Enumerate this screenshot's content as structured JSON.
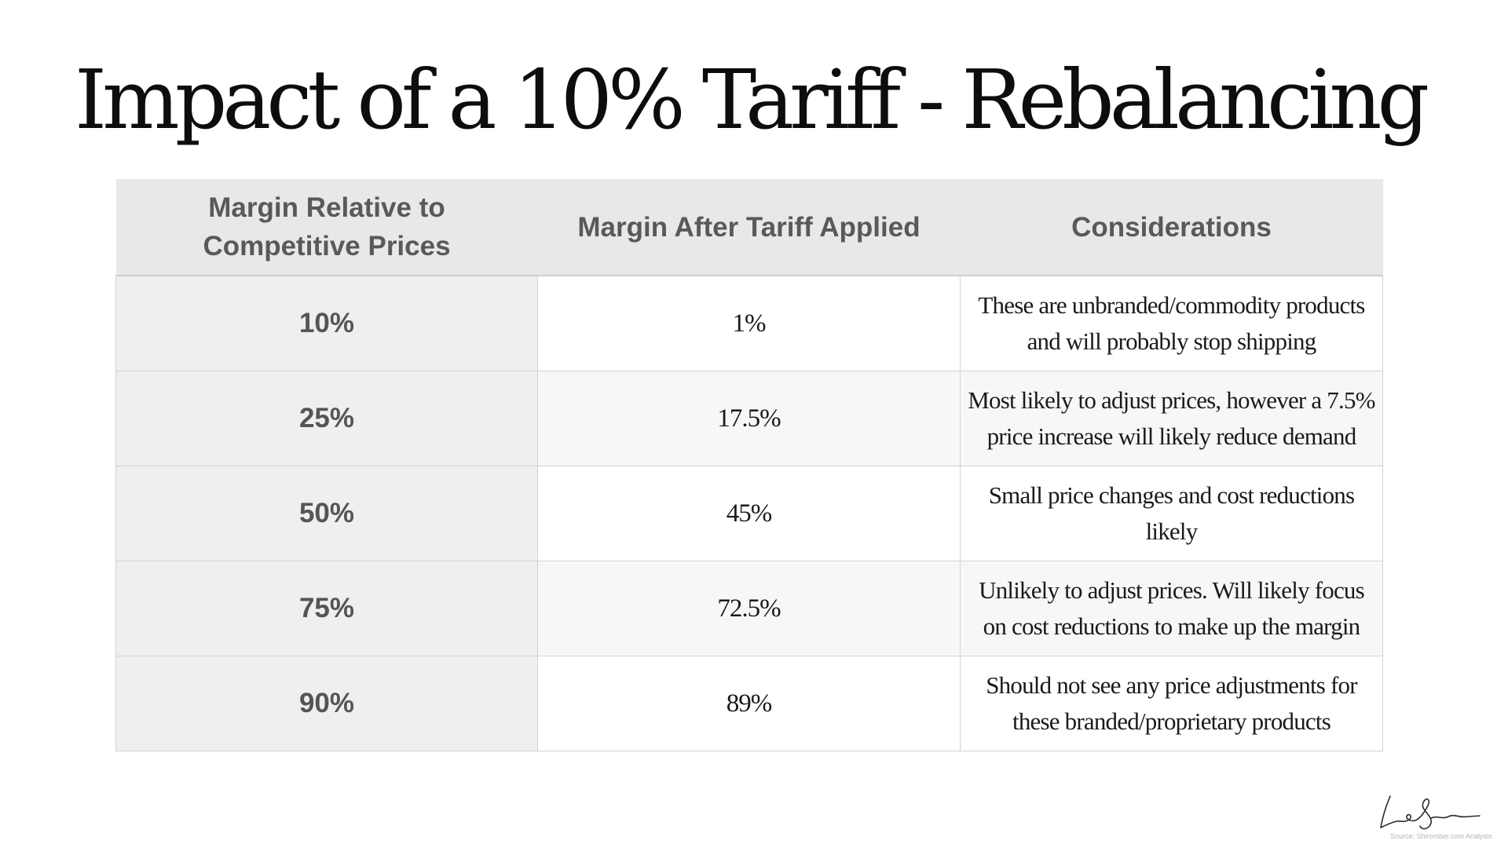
{
  "slide": {
    "title": "Impact of a 10% Tariff - Rebalancing"
  },
  "table": {
    "headers": [
      "Margin Relative to Competitive Prices",
      "Margin After Tariff Applied",
      "Considerations"
    ],
    "rows": [
      {
        "margin": "10%",
        "after_tariff": "1%",
        "considerations": "These are unbranded/commodity products and will probably stop shipping"
      },
      {
        "margin": "25%",
        "after_tariff": "17.5%",
        "considerations": "Most likely to adjust prices, however a 7.5% price increase will likely reduce demand"
      },
      {
        "margin": "50%",
        "after_tariff": "45%",
        "considerations": "Small price changes and cost reductions likely"
      },
      {
        "margin": "75%",
        "after_tariff": "72.5%",
        "considerations": "Unlikely to adjust prices. Will likely focus on cost reductions to make up the margin"
      },
      {
        "margin": "90%",
        "after_tariff": "89%",
        "considerations": "Should not see any price adjustments for these branded/proprietary products"
      }
    ]
  },
  "footer": {
    "source": "Source: Shiromber.com Analysis"
  },
  "colors": {
    "header_bg": "#e8e8e8",
    "first_col_bg": "#efefef",
    "alt_row_bg": "#f7f7f7",
    "border": "#d3d3d3",
    "title": "#0d0d0d"
  }
}
